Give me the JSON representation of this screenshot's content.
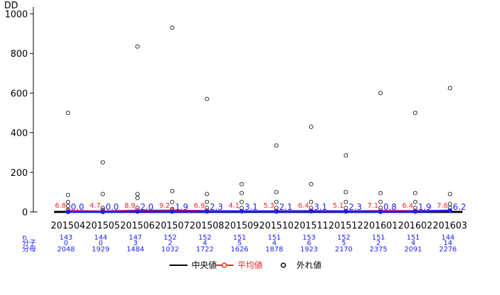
{
  "chart_data": {
    "type": "box",
    "y_axis_label": "DD",
    "ylim": [
      0,
      1000
    ],
    "yticks": [
      0,
      200,
      400,
      600,
      800,
      1000
    ],
    "categories": [
      "201504",
      "201505",
      "201506",
      "201507",
      "201508",
      "201509",
      "201510",
      "201511",
      "201512",
      "201601",
      "201602",
      "201603"
    ],
    "median_values": [
      0,
      0,
      0,
      0,
      0,
      0,
      0,
      0,
      0,
      0,
      0,
      0
    ],
    "mean_values": [
      6.8,
      4.7,
      8.9,
      9.2,
      6.9,
      4.1,
      5.3,
      6.4,
      5.1,
      7.1,
      6.4,
      7.6
    ],
    "mean_labels": [
      "6.8",
      "4.7",
      "8.9",
      "9.2",
      "6.9",
      "4.1",
      "5.3",
      "6.4",
      "5.1",
      "7.1",
      "6.4",
      "7.6"
    ],
    "median_labels": [
      "0.0",
      "0.0",
      "2.0",
      "1.9",
      "2.3",
      "3.1",
      "2.1",
      "3.1",
      "2.3",
      "0.8",
      "1.9",
      "6.2"
    ],
    "outliers": [
      [
        10,
        30,
        50,
        85,
        500
      ],
      [
        10,
        20,
        90,
        250
      ],
      [
        20,
        70,
        90,
        835
      ],
      [
        15,
        50,
        105,
        930
      ],
      [
        20,
        50,
        90,
        570
      ],
      [
        20,
        50,
        95,
        140
      ],
      [
        20,
        50,
        100,
        335
      ],
      [
        20,
        50,
        140,
        430
      ],
      [
        20,
        50,
        100,
        285
      ],
      [
        20,
        50,
        95,
        600
      ],
      [
        20,
        50,
        95,
        500
      ],
      [
        20,
        40,
        90,
        625
      ]
    ],
    "table": {
      "row_labels": [
        "n",
        "分子",
        "分母"
      ],
      "n": [
        "143",
        "144",
        "147",
        "152",
        "152",
        "151",
        "151",
        "153",
        "152",
        "151",
        "151",
        "144"
      ],
      "numerator": [
        "0",
        "0",
        "3",
        "2",
        "4",
        "5",
        "4",
        "6",
        "5",
        "2",
        "4",
        "14"
      ],
      "denominator": [
        "2048",
        "1929",
        "1484",
        "1032",
        "1722",
        "1626",
        "1878",
        "1923",
        "2170",
        "2375",
        "2091",
        "2276"
      ]
    },
    "legend": [
      {
        "label": "中央値",
        "color": "#000000",
        "kind": "line"
      },
      {
        "label": "平均値",
        "color": "#ff2020",
        "kind": "line-circle"
      },
      {
        "label": "外れ値",
        "color": "#000000",
        "kind": "circle"
      }
    ],
    "colors": {
      "median_line": "#000000",
      "mean_line": "#ff2020",
      "median_marker": "#1a1aff",
      "table_text": "#1a1aff",
      "outlier": "#333333"
    },
    "grid": false
  }
}
